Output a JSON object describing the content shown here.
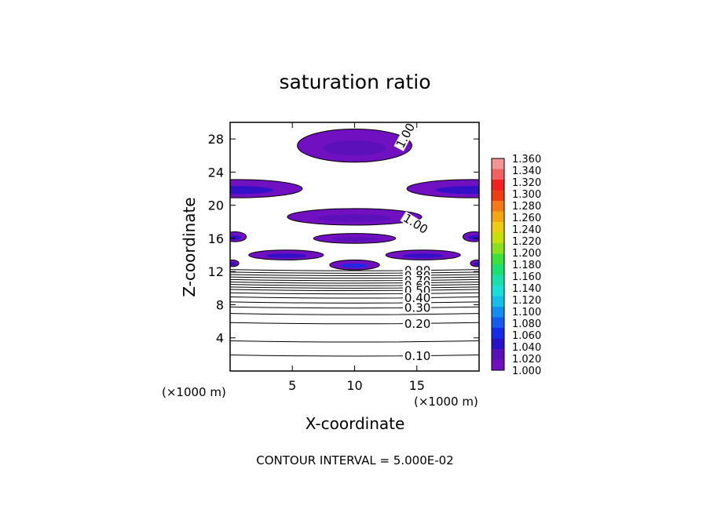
{
  "chart_data": {
    "type": "heatmap",
    "title": "saturation ratio",
    "xlabel": "X-coordinate",
    "ylabel": "Z-coordinate",
    "xlim": [
      0,
      20
    ],
    "ylim": [
      0,
      30
    ],
    "x_ticks": [
      "5",
      "10",
      "15"
    ],
    "y_ticks": [
      "4",
      "8",
      "12",
      "16",
      "20",
      "24",
      "28"
    ],
    "x_unit_left": "(×1000 m)",
    "x_unit_right": "(×1000 m)",
    "footer": "CONTOUR INTERVAL = 5.000E-02",
    "colorbar": {
      "labels": [
        "1.360",
        "1.340",
        "1.320",
        "1.300",
        "1.280",
        "1.260",
        "1.240",
        "1.220",
        "1.200",
        "1.180",
        "1.160",
        "1.140",
        "1.120",
        "1.100",
        "1.080",
        "1.060",
        "1.040",
        "1.020",
        "1.000"
      ],
      "colors": [
        "#f49494",
        "#f26060",
        "#f22020",
        "#ee3c14",
        "#f47a18",
        "#f4a612",
        "#eccd12",
        "#c8e00a",
        "#8ae01a",
        "#3ee03a",
        "#1ae070",
        "#18e0a8",
        "#18e0d8",
        "#14c0e8",
        "#148ef0",
        "#145cf0",
        "#142ce8",
        "#2810c8",
        "#5810b8",
        "#7010c0"
      ]
    },
    "contour_labels": [
      {
        "text": "1.00",
        "x": 13.6,
        "z": 27.0,
        "angle": -62
      },
      {
        "text": "1.00",
        "x": 14.0,
        "z": 18.6,
        "angle": 32
      },
      {
        "text": "0.90",
        "x": 14.0,
        "z": 12.1
      },
      {
        "text": "0.80",
        "x": 14.0,
        "z": 11.5
      },
      {
        "text": "0.70",
        "x": 14.0,
        "z": 10.9
      },
      {
        "text": "0.60",
        "x": 14.0,
        "z": 10.3
      },
      {
        "text": "0.50",
        "x": 14.0,
        "z": 9.7
      },
      {
        "text": "0.40",
        "x": 14.0,
        "z": 8.8
      },
      {
        "text": "0.30",
        "x": 14.0,
        "z": 7.6
      },
      {
        "text": "0.20",
        "x": 14.0,
        "z": 5.7
      },
      {
        "text": "0.10",
        "x": 14.0,
        "z": 1.8
      }
    ],
    "contour_levels_z": [
      1.8,
      3.5,
      5.7,
      6.8,
      7.6,
      8.2,
      8.8,
      9.3,
      9.7,
      10.0,
      10.3,
      10.6,
      10.9,
      11.2,
      11.5,
      11.8,
      12.1
    ],
    "supersaturated_regions": [
      {
        "cx": 10.0,
        "cz": 27.2,
        "rx": 4.6,
        "rz": 2.0,
        "level": 1.01
      },
      {
        "cx": 0.6,
        "cz": 22.0,
        "rx": 5.2,
        "rz": 1.1,
        "level": 1.03
      },
      {
        "cx": 19.4,
        "cz": 22.0,
        "rx": 5.2,
        "rz": 1.1,
        "level": 1.03
      },
      {
        "cx": 10.0,
        "cz": 18.6,
        "rx": 5.4,
        "rz": 1.0,
        "level": 1.02
      },
      {
        "cx": 10.0,
        "cz": 16.0,
        "rx": 3.3,
        "rz": 0.6,
        "level": 1.01
      },
      {
        "cx": 4.5,
        "cz": 14.0,
        "rx": 3.0,
        "rz": 0.6,
        "level": 1.03
      },
      {
        "cx": 15.5,
        "cz": 14.0,
        "rx": 3.0,
        "rz": 0.6,
        "level": 1.03
      },
      {
        "cx": 0.4,
        "cz": 16.2,
        "rx": 0.9,
        "rz": 0.6,
        "level": 1.03
      },
      {
        "cx": 19.6,
        "cz": 16.2,
        "rx": 0.9,
        "rz": 0.6,
        "level": 1.03
      },
      {
        "cx": 0.2,
        "cz": 13.0,
        "rx": 0.5,
        "rz": 0.4,
        "level": 1.04
      },
      {
        "cx": 19.8,
        "cz": 13.0,
        "rx": 0.5,
        "rz": 0.4,
        "level": 1.04
      },
      {
        "cx": 10.0,
        "cz": 12.8,
        "rx": 2.0,
        "rz": 0.6,
        "level": 1.05
      }
    ]
  }
}
